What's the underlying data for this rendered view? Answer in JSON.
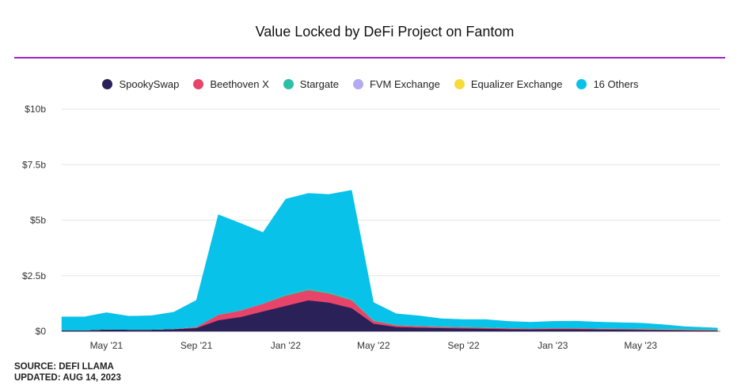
{
  "chart_data": {
    "type": "area",
    "title": "Value Locked by DeFi Project on Fantom",
    "xlabel": "",
    "ylabel": "",
    "stacked": true,
    "x_ticks": [
      "May '21",
      "Sep '21",
      "Jan '22",
      "May '22",
      "Sep '22",
      "Jan '23",
      "May '23"
    ],
    "y_ticks": [
      "$0",
      "$2.5b",
      "$5b",
      "$7.5b",
      "$10b"
    ],
    "ylim": [
      0,
      10
    ],
    "y_unit": "billions USD",
    "x_dates": [
      "2021-03-01",
      "2021-04-01",
      "2021-05-01",
      "2021-06-01",
      "2021-07-01",
      "2021-08-01",
      "2021-09-01",
      "2021-10-01",
      "2021-11-01",
      "2021-12-01",
      "2022-01-01",
      "2022-02-01",
      "2022-03-01",
      "2022-04-01",
      "2022-05-01",
      "2022-06-01",
      "2022-07-01",
      "2022-08-01",
      "2022-09-01",
      "2022-10-01",
      "2022-11-01",
      "2022-12-01",
      "2023-01-01",
      "2023-02-01",
      "2023-03-01",
      "2023-04-01",
      "2023-05-01",
      "2023-06-01",
      "2023-07-01",
      "2023-08-14"
    ],
    "series": [
      {
        "name": "SpookySwap",
        "color": "#2b2159",
        "values": [
          0.05,
          0.05,
          0.09,
          0.08,
          0.08,
          0.1,
          0.15,
          0.5,
          0.65,
          0.9,
          1.15,
          1.4,
          1.3,
          1.05,
          0.35,
          0.2,
          0.17,
          0.15,
          0.13,
          0.12,
          0.1,
          0.09,
          0.1,
          0.1,
          0.09,
          0.08,
          0.07,
          0.06,
          0.05,
          0.04
        ]
      },
      {
        "name": "Beethoven X",
        "color": "#e8446a",
        "values": [
          0,
          0,
          0,
          0,
          0,
          0.01,
          0.05,
          0.25,
          0.3,
          0.35,
          0.45,
          0.45,
          0.4,
          0.35,
          0.12,
          0.07,
          0.06,
          0.05,
          0.05,
          0.04,
          0.04,
          0.03,
          0.04,
          0.04,
          0.03,
          0.03,
          0.03,
          0.02,
          0.02,
          0.01
        ]
      },
      {
        "name": "Stargate",
        "color": "#2bbfa8",
        "values": [
          0,
          0,
          0,
          0,
          0,
          0,
          0,
          0,
          0,
          0,
          0.05,
          0.06,
          0.06,
          0.05,
          0.03,
          0.02,
          0.02,
          0.02,
          0.02,
          0.02,
          0.01,
          0.01,
          0.01,
          0.01,
          0.01,
          0.01,
          0.01,
          0.01,
          0.01,
          0.01
        ]
      },
      {
        "name": "FVM Exchange",
        "color": "#b3aaf0",
        "values": [
          0,
          0,
          0,
          0,
          0,
          0,
          0,
          0,
          0,
          0,
          0,
          0,
          0,
          0,
          0,
          0,
          0,
          0,
          0,
          0,
          0,
          0,
          0,
          0,
          0,
          0,
          0,
          0,
          0,
          0
        ]
      },
      {
        "name": "Equalizer Exchange",
        "color": "#f5dc3c",
        "values": [
          0,
          0,
          0,
          0,
          0,
          0,
          0,
          0,
          0,
          0,
          0,
          0,
          0,
          0,
          0,
          0,
          0,
          0,
          0,
          0,
          0,
          0,
          0,
          0,
          0,
          0,
          0.01,
          0.01,
          0.01,
          0.01
        ]
      },
      {
        "name": "16 Others",
        "color": "#08c2ea",
        "values": [
          0.6,
          0.6,
          0.75,
          0.6,
          0.62,
          0.75,
          1.2,
          4.5,
          3.9,
          3.2,
          4.3,
          4.3,
          4.4,
          4.9,
          0.8,
          0.5,
          0.45,
          0.35,
          0.33,
          0.35,
          0.3,
          0.28,
          0.3,
          0.31,
          0.29,
          0.27,
          0.25,
          0.2,
          0.12,
          0.08
        ]
      }
    ],
    "legend_position": "top-center",
    "grid": true
  },
  "footer": {
    "source": "SOURCE: DEFI LLAMA",
    "updated": "UPDATED: AUG 14, 2023"
  }
}
